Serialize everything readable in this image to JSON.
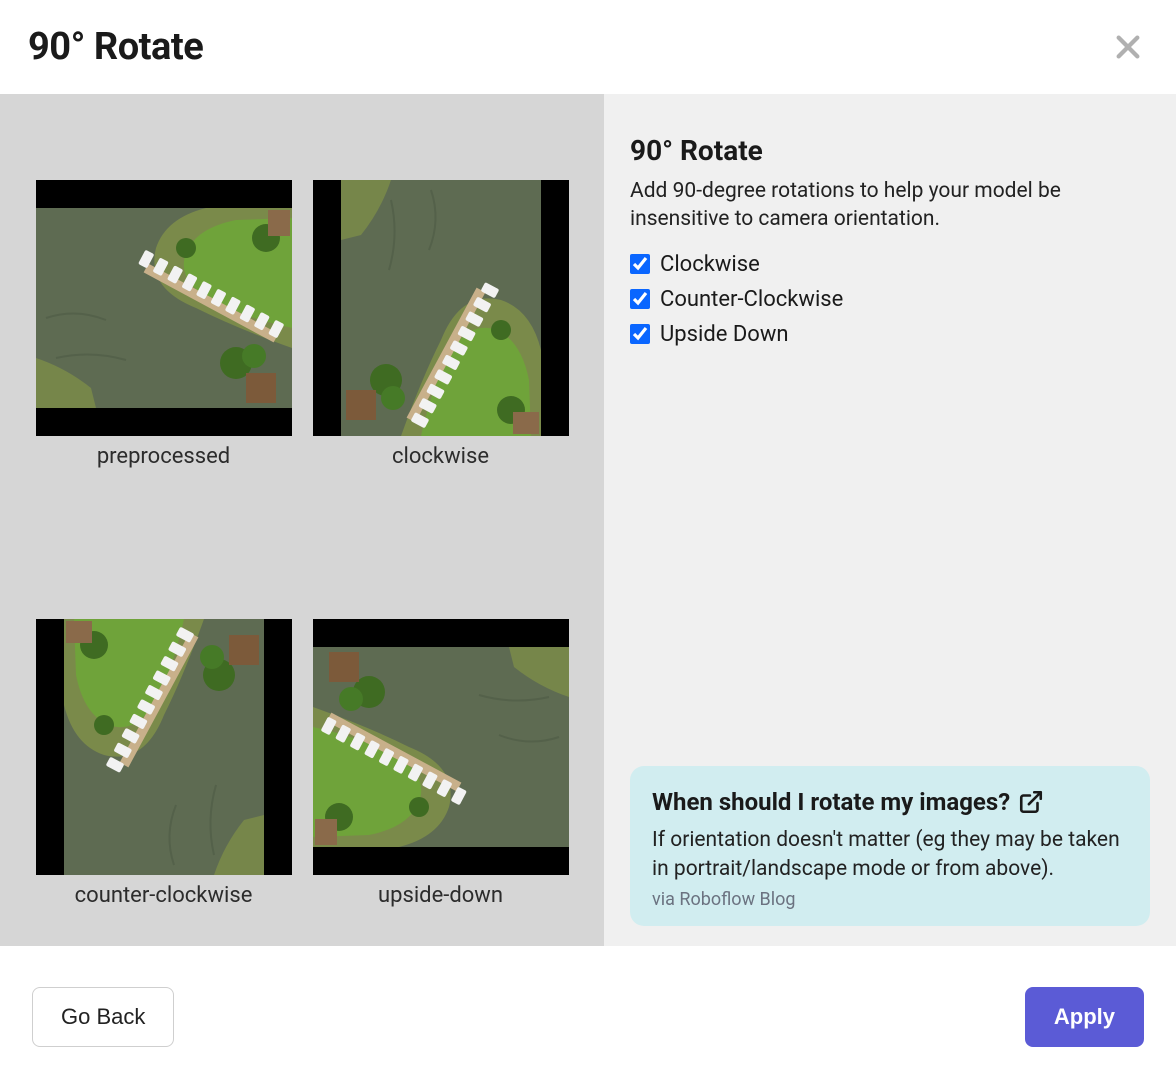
{
  "header": {
    "title": "90° Rotate"
  },
  "previews": [
    {
      "label": "preprocessed",
      "orientation": "landscape",
      "rotation": 0
    },
    {
      "label": "clockwise",
      "orientation": "portrait",
      "rotation": 90
    },
    {
      "label": "counter-clockwise",
      "orientation": "portrait",
      "rotation": 270
    },
    {
      "label": "upside-down",
      "orientation": "landscape",
      "rotation": 180
    }
  ],
  "settings": {
    "title": "90° Rotate",
    "description": "Add 90-degree rotations to help your model be insensitive to camera orientation.",
    "options": [
      {
        "label": "Clockwise",
        "checked": true
      },
      {
        "label": "Counter-Clockwise",
        "checked": true
      },
      {
        "label": "Upside Down",
        "checked": true
      }
    ]
  },
  "info": {
    "title": "When should I rotate my images?",
    "body": "If orientation doesn't matter (eg they may be taken in portrait/landscape mode or from above).",
    "source": "via Roboflow Blog"
  },
  "footer": {
    "back": "Go Back",
    "apply": "Apply"
  },
  "colors": {
    "left_bg": "#d6d6d6",
    "right_bg": "#f0f0f0",
    "info_bg": "#d1edf0",
    "primary_btn": "#5b5bd6",
    "checkbox_accent": "#0a66ff",
    "thumb_bg": "#000000"
  }
}
